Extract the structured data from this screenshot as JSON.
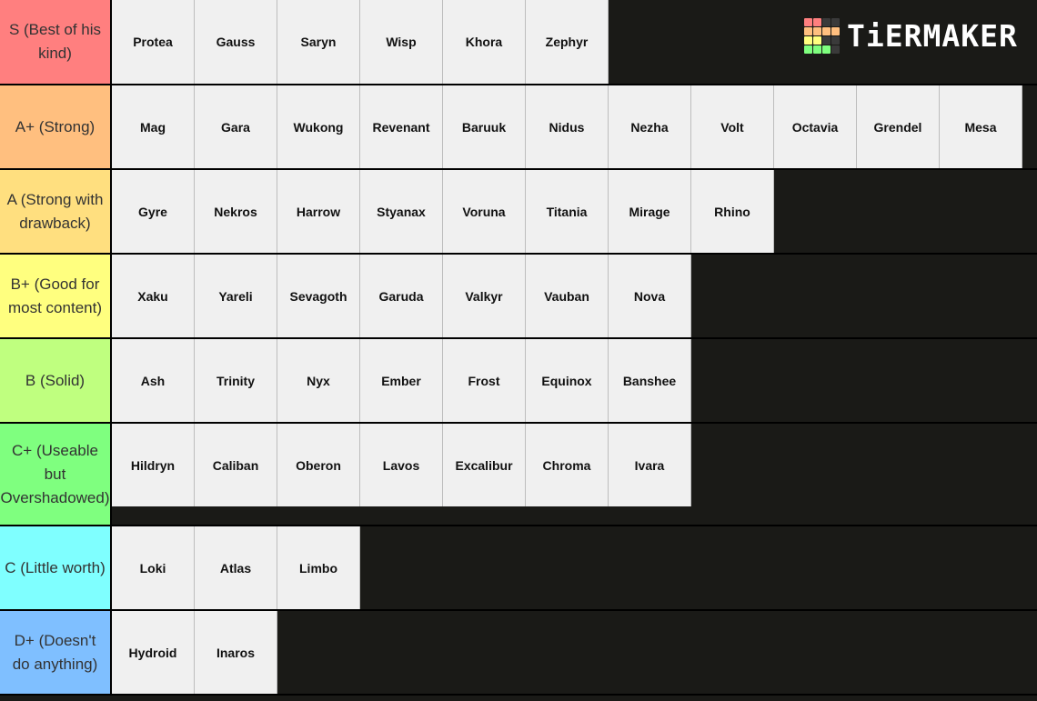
{
  "logo": {
    "text": "TiERMAKER",
    "grid_colors": [
      "#ff7f7f",
      "#ff7f7f",
      "#3a3a3a",
      "#3a3a3a",
      "#ffbf7f",
      "#ffbf7f",
      "#ffbf7f",
      "#ffbf7f",
      "#ffff7f",
      "#ffff7f",
      "#3a3a3a",
      "#3a3a3a",
      "#7fff7f",
      "#7fff7f",
      "#7fff7f",
      "#3a3a3a"
    ]
  },
  "tiers": [
    {
      "label": "S (Best of his kind)",
      "color": "#ff7f7f",
      "items": [
        "Protea",
        "Gauss",
        "Saryn",
        "Wisp",
        "Khora",
        "Zephyr"
      ]
    },
    {
      "label": "A+ (Strong)",
      "color": "#ffbf7f",
      "items": [
        "Mag",
        "Gara",
        "Wukong",
        "Revenant",
        "Baruuk",
        "Nidus",
        "Nezha",
        "Volt",
        "Octavia",
        "Grendel",
        "Mesa"
      ]
    },
    {
      "label": "A (Strong with drawback)",
      "color": "#ffdf7f",
      "items": [
        "Gyre",
        "Nekros",
        "Harrow",
        "Styanax",
        "Voruna",
        "Titania",
        "Mirage",
        "Rhino"
      ]
    },
    {
      "label": "B+ (Good for most content)",
      "color": "#ffff7f",
      "items": [
        "Xaku",
        "Yareli",
        "Sevagoth",
        "Garuda",
        "Valkyr",
        "Vauban",
        "Nova"
      ]
    },
    {
      "label": "B (Solid)",
      "color": "#bfff7f",
      "items": [
        "Ash",
        "Trinity",
        "Nyx",
        "Ember",
        "Frost",
        "Equinox",
        "Banshee"
      ]
    },
    {
      "label": "C+ (Useable but Overshadowed)",
      "color": "#7fff7f",
      "items": [
        "Hildryn",
        "Caliban",
        "Oberon",
        "Lavos",
        "Excalibur",
        "Chroma",
        "Ivara"
      ]
    },
    {
      "label": "C (Little worth)",
      "color": "#7fffff",
      "items": [
        "Loki",
        "Atlas",
        "Limbo"
      ]
    },
    {
      "label": "D+ (Doesn't do anything)",
      "color": "#7fbfff",
      "items": [
        "Hydroid",
        "Inaros"
      ]
    }
  ]
}
